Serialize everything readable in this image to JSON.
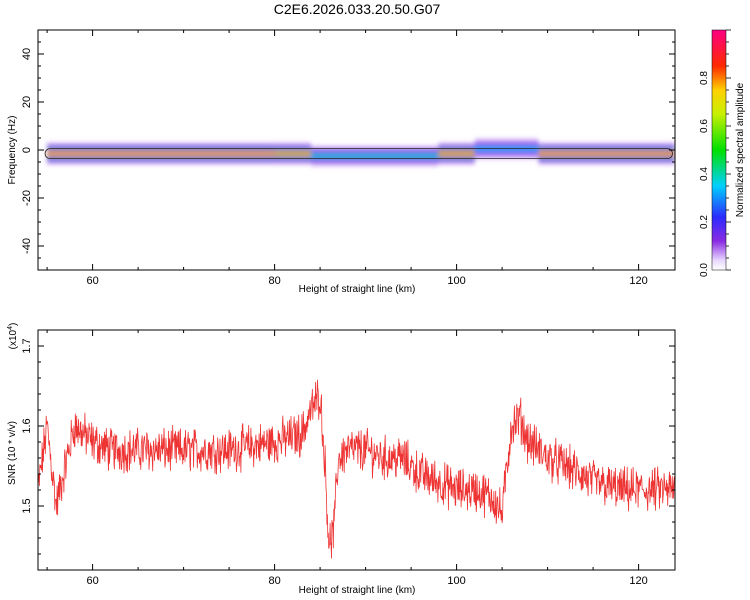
{
  "figure_title": "C2E6.2026.033.20.50.G07",
  "chart_data": [
    {
      "type": "heatmap",
      "title": "C2E6.2026.033.20.50.G07",
      "xlabel": "Height of straight line (km)",
      "ylabel": "Frequency (Hz)",
      "xlim": [
        54,
        124
      ],
      "ylim": [
        -50,
        50
      ],
      "xticks": [
        60,
        80,
        100,
        120
      ],
      "yticks": [
        -40,
        -20,
        0,
        20,
        40
      ],
      "x_tick_labels": [
        "60",
        "80",
        "100",
        "120"
      ],
      "y_tick_labels": [
        "-40",
        "-20",
        "0",
        "20",
        "40"
      ],
      "colorbar": {
        "label": "Normalized spectral amplitude",
        "range": [
          0,
          1
        ],
        "ticks": [
          0.0,
          0.2,
          0.4,
          0.6,
          0.8
        ],
        "tick_labels": [
          "0.0",
          "0.2",
          "0.4",
          "0.6",
          "0.8"
        ]
      },
      "band": {
        "center_freq_hz": -1.5,
        "segments": [
          {
            "x": [
              55,
              80
            ],
            "freq": -1.5,
            "amplitude": 0.95
          },
          {
            "x": [
              80,
              84
            ],
            "freq": -1.5,
            "amplitude": 0.85
          },
          {
            "x": [
              84,
              98
            ],
            "freq": -2.5,
            "amplitude": 0.35
          },
          {
            "x": [
              98,
              102
            ],
            "freq": -1.5,
            "amplitude": 0.9
          },
          {
            "x": [
              102,
              109
            ],
            "freq": 0.5,
            "amplitude": 0.3
          },
          {
            "x": [
              109,
              124
            ],
            "freq": -1.5,
            "amplitude": 0.95
          }
        ]
      }
    },
    {
      "type": "line",
      "xlabel": "Height of straight line (km)",
      "ylabel": "SNR (10 * v/v)",
      "multiplier": "(x10",
      "multiplier_exp": "4",
      "xlim": [
        54,
        124
      ],
      "ylim": [
        1.42,
        1.72
      ],
      "xticks": [
        60,
        80,
        100,
        120
      ],
      "yticks": [
        1.5,
        1.6,
        1.7
      ],
      "x_tick_labels": [
        "60",
        "80",
        "100",
        "120"
      ],
      "y_tick_labels": [
        "1.5",
        "1.6",
        "1.7"
      ],
      "color": "#ee3333",
      "series": [
        {
          "x": [
            54,
            55,
            56,
            57,
            58,
            60,
            62,
            65,
            70,
            75,
            80,
            83,
            84,
            85,
            85.5,
            86,
            86.5,
            87,
            88,
            90,
            92,
            94,
            96,
            98,
            100,
            102,
            104,
            105,
            106,
            107,
            107.5,
            108,
            110,
            112,
            115,
            118,
            120,
            122,
            124
          ],
          "y": [
            1.52,
            1.6,
            1.5,
            1.55,
            1.6,
            1.58,
            1.57,
            1.57,
            1.57,
            1.57,
            1.58,
            1.59,
            1.62,
            1.64,
            1.56,
            1.45,
            1.47,
            1.56,
            1.57,
            1.57,
            1.56,
            1.56,
            1.54,
            1.53,
            1.52,
            1.52,
            1.51,
            1.49,
            1.6,
            1.61,
            1.59,
            1.58,
            1.56,
            1.55,
            1.53,
            1.52,
            1.52,
            1.52,
            1.52
          ]
        }
      ]
    }
  ]
}
